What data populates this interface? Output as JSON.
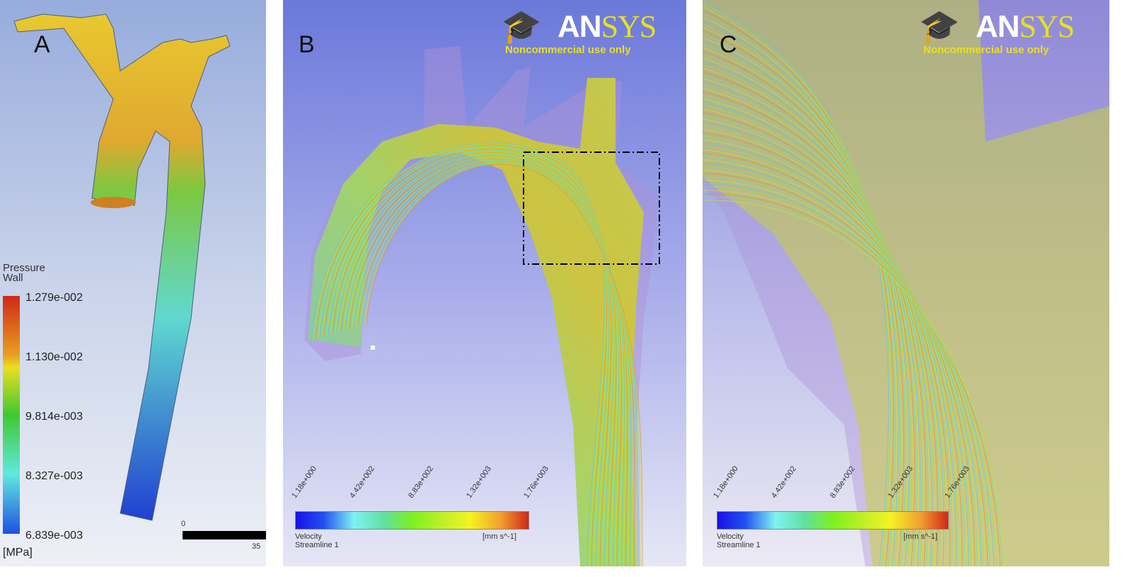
{
  "panels": {
    "a": {
      "label": "A",
      "legend": {
        "title_line1": "Pressure",
        "title_line2": "Wall",
        "unit": "[MPa]",
        "ticks": [
          "1.279e-002",
          "1.130e-002",
          "9.814e-003",
          "8.327e-003",
          "6.839e-003"
        ]
      },
      "scale_bar": {
        "start": "0",
        "end": "35"
      }
    },
    "b": {
      "label": "B",
      "logo": {
        "name_white": "AN",
        "name_yellow": "SYS",
        "notice": "Noncommercial use only"
      },
      "legend": {
        "title_line1": "Velocity",
        "title_line2": "Streamline 1",
        "unit": "[mm s^-1]",
        "ticks": [
          "1.18e+000",
          "4.42e+002",
          "8.83e+002",
          "1.32e+003",
          "1.76e+003"
        ]
      }
    },
    "c": {
      "label": "C",
      "logo": {
        "name_white": "AN",
        "name_yellow": "SYS",
        "notice": "Noncommercial use only"
      },
      "legend": {
        "title_line1": "Velocity",
        "title_line2": "Streamline 1",
        "unit": "[mm s^-1]",
        "ticks": [
          "1.18e+000",
          "4.42e+002",
          "8.83e+002",
          "1.32e+003",
          "1.76e+003"
        ]
      }
    }
  },
  "colors": {
    "cmap_low": "#1a10e8",
    "cmap_mid": "#7cf020",
    "cmap_high": "#d02818",
    "logo_yellow": "#e8e020"
  }
}
